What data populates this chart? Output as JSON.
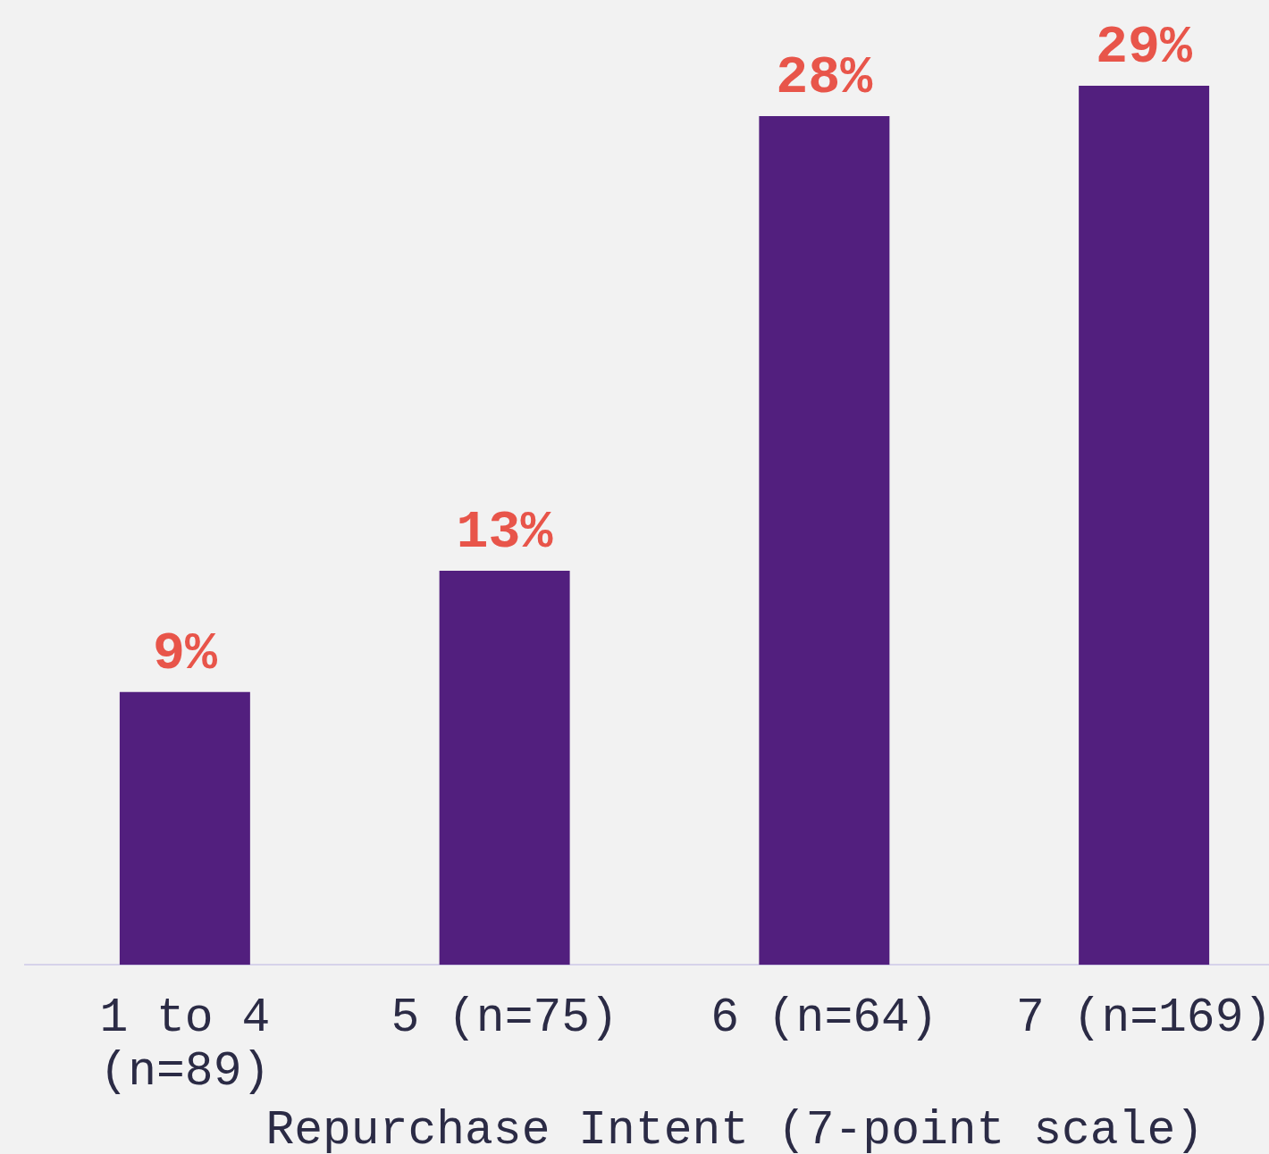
{
  "chart_data": {
    "type": "bar",
    "xlabel": "Repurchase Intent (7-point scale)",
    "categories": [
      "1 to 4 (n=89)",
      "5 (n=75)",
      "6 (n=64)",
      "7 (n=169)"
    ],
    "values": [
      9,
      13,
      28,
      29
    ],
    "value_labels": [
      "9%",
      "13%",
      "28%",
      "29%"
    ],
    "color": "#521f7e",
    "tick_labels": "x"
  }
}
